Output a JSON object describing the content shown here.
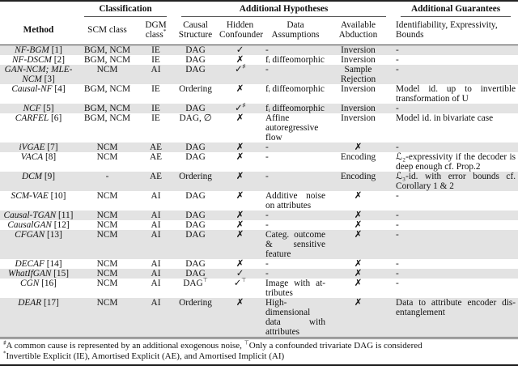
{
  "header": {
    "group_classification": "Classification",
    "group_hypotheses": "Additional Hypotheses",
    "group_guarantees": "Additional Guarantees",
    "col_method": "Method",
    "col_scm": "SCM class",
    "col_dgm": "DGM class",
    "col_dgm_sup": "*",
    "col_causal": "Causal Structure",
    "col_hidden": "Hidden Confounder",
    "col_data": "Data Assumptions",
    "col_abduction": "Available Abduction",
    "col_guarantees": "Identifiability, Expressivity, Bounds"
  },
  "rows": [
    {
      "method": "NF-BGM",
      "ref": "[1]",
      "scm": "BGM, NCM",
      "dgm": "IE",
      "causal": "DAG",
      "causal_sup": "",
      "hidden": "✓",
      "hidden_sup": "",
      "data": "-",
      "abduction": "Inversion",
      "guarantees": "-"
    },
    {
      "method": "NF-DSCM",
      "ref": "[2]",
      "scm": "BGM, NCM",
      "dgm": "IE",
      "causal": "DAG",
      "causal_sup": "",
      "hidden": "✗",
      "hidden_sup": "",
      "data": "fᵢ diffeomorphic",
      "abduction": "Inversion",
      "guarantees": "-"
    },
    {
      "method": "GAN-NCM; MLE-NCM",
      "ref": "[3]",
      "scm": "NCM",
      "dgm": "AI",
      "causal": "DAG",
      "causal_sup": "",
      "hidden": "✓",
      "hidden_sup": "♯",
      "data": "-",
      "abduction": "Sample Rejection",
      "guarantees": "-"
    },
    {
      "method": "Causal-NF",
      "ref": "[4]",
      "scm": "BGM, NCM",
      "dgm": "IE",
      "causal": "Ordering",
      "causal_sup": "",
      "hidden": "✗",
      "hidden_sup": "",
      "data": "fᵢ diffeomorphic",
      "abduction": "Inversion",
      "guarantees": "Model id.  up to invertible transformation of U"
    },
    {
      "method": "NCF",
      "ref": "[5]",
      "scm": "BGM, NCM",
      "dgm": "IE",
      "causal": "DAG",
      "causal_sup": "",
      "hidden": "✓",
      "hidden_sup": "♯",
      "data": "fᵢ diffeomorphic",
      "abduction": "Inversion",
      "guarantees": "-"
    },
    {
      "method": "CARFEL",
      "ref": "[6]",
      "scm": "BGM, NCM",
      "dgm": "IE",
      "causal": "DAG, ∅",
      "causal_sup": "",
      "hidden": "✗",
      "hidden_sup": "",
      "data": "Affine autoregres­sive flow",
      "abduction": "Inversion",
      "guarantees": "Model id. in bivariate case"
    },
    {
      "method": "iVGAE",
      "ref": "[7]",
      "scm": "NCM",
      "dgm": "AE",
      "causal": "DAG",
      "causal_sup": "",
      "hidden": "✗",
      "hidden_sup": "",
      "data": "-",
      "abduction": "✗",
      "guarantees": "-"
    },
    {
      "method": "VACA",
      "ref": "[8]",
      "scm": "NCM",
      "dgm": "AE",
      "causal": "DAG",
      "causal_sup": "",
      "hidden": "✗",
      "hidden_sup": "",
      "data": "-",
      "abduction": "Encoding",
      "guarantees": "ℒ₂-expressivity if the decoder is deep enough cf. Prop.2"
    },
    {
      "method": "DCM",
      "ref": "[9]",
      "scm": "-",
      "dgm": "AE",
      "causal": "Ordering",
      "causal_sup": "",
      "hidden": "✗",
      "hidden_sup": "",
      "data": "-",
      "abduction": "Encoding",
      "guarantees": "ℒ₃-id.  with error bounds cf. Corollary 1 & 2"
    },
    {
      "method": "SCM-VAE",
      "ref": "[10]",
      "scm": "NCM",
      "dgm": "AI",
      "causal": "DAG",
      "causal_sup": "",
      "hidden": "✗",
      "hidden_sup": "",
      "data": "Additive noise on attributes",
      "abduction": "✗",
      "guarantees": "-"
    },
    {
      "method": "Causal-TGAN",
      "ref": "[11]",
      "scm": "NCM",
      "dgm": "AI",
      "causal": "DAG",
      "causal_sup": "",
      "hidden": "✗",
      "hidden_sup": "",
      "data": "-",
      "abduction": "✗",
      "guarantees": "-"
    },
    {
      "method": "CausalGAN",
      "ref": "[12]",
      "scm": "NCM",
      "dgm": "AI",
      "causal": "DAG",
      "causal_sup": "",
      "hidden": "✗",
      "hidden_sup": "",
      "data": "-",
      "abduction": "✗",
      "guarantees": "-"
    },
    {
      "method": "CFGAN",
      "ref": "[13]",
      "scm": "NCM",
      "dgm": "AI",
      "causal": "DAG",
      "causal_sup": "",
      "hidden": "✗",
      "hidden_sup": "",
      "data": "Categ. outcome & sensitive feature",
      "abduction": "✗",
      "guarantees": "-"
    },
    {
      "method": "DECAF",
      "ref": "[14]",
      "scm": "NCM",
      "dgm": "AI",
      "causal": "DAG",
      "causal_sup": "",
      "hidden": "✗",
      "hidden_sup": "",
      "data": "-",
      "abduction": "✗",
      "guarantees": "-"
    },
    {
      "method": "WhatIfGAN",
      "ref": "[15]",
      "scm": "NCM",
      "dgm": "AI",
      "causal": "DAG",
      "causal_sup": "",
      "hidden": "✓",
      "hidden_sup": "",
      "data": "-",
      "abduction": "✗",
      "guarantees": "-"
    },
    {
      "method": "CGN",
      "ref": "[16]",
      "scm": "NCM",
      "dgm": "AI",
      "causal": "DAG",
      "causal_sup": "⊤",
      "hidden": "✓",
      "hidden_sup": "⊤",
      "data": "Image with at­tributes",
      "abduction": "✗",
      "guarantees": "-"
    },
    {
      "method": "DEAR",
      "ref": "[17]",
      "scm": "NCM",
      "dgm": "AI",
      "causal": "Ordering",
      "causal_sup": "",
      "hidden": "✗",
      "hidden_sup": "",
      "data": "High-dimensional data with attributes",
      "abduction": "✗",
      "guarantees": "Data to attribute encoder dis­entanglement"
    }
  ],
  "footnotes": {
    "sharp_mark": "♯",
    "sharp_text": "A common cause is represented by an additional exogenous noise, ",
    "top_mark": "⊤",
    "top_text": "Only a confounded trivariate DAG is considered",
    "star_mark": "*",
    "star_text": "Invertible Explicit (IE), Amortised Explicit (AE), and Amortised Implicit (AI)"
  },
  "colors": {
    "row_shade": "#e3e3e3",
    "rule": "#222222"
  }
}
